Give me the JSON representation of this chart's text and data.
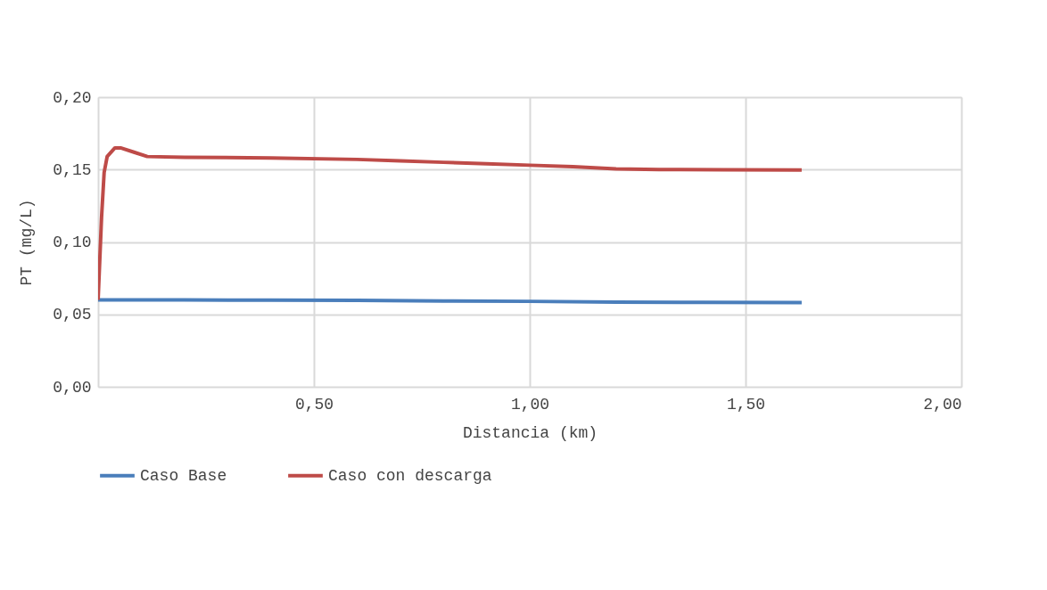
{
  "chart_data": {
    "type": "line",
    "xlabel": "Distancia (km)",
    "ylabel": "PT (mg/L)",
    "xlim": [
      0,
      2
    ],
    "ylim": [
      0,
      0.2
    ],
    "xticks": [
      {
        "value": 0,
        "label": null
      },
      {
        "value": 0.5,
        "label": "0,50"
      },
      {
        "value": 1,
        "label": "1,00"
      },
      {
        "value": 1.5,
        "label": "1,50"
      },
      {
        "value": 2,
        "label": "2,00"
      }
    ],
    "yticks": [
      {
        "value": 0,
        "label": "0,00"
      },
      {
        "value": 0.05,
        "label": "0,05"
      },
      {
        "value": 0.1,
        "label": "0,10"
      },
      {
        "value": 0.15,
        "label": "0,15"
      },
      {
        "value": 0.2,
        "label": "0,20"
      }
    ],
    "grid": true,
    "legend": "bottom",
    "marker": "none",
    "line_style": "solid",
    "series": [
      {
        "name": "Caso Base",
        "color": "#4a7ebb",
        "x": [
          0,
          0.2,
          0.4,
          0.6,
          0.8,
          1.0,
          1.2,
          1.4,
          1.63
        ],
        "values": [
          0.06,
          0.06,
          0.0598,
          0.0597,
          0.0593,
          0.059,
          0.0585,
          0.0583,
          0.0582
        ]
      },
      {
        "name": "Caso con descarga",
        "color": "#be4b48",
        "x": [
          0,
          0.008,
          0.014,
          0.021,
          0.039,
          0.052,
          0.083,
          0.114,
          0.2,
          0.4,
          0.6,
          0.7,
          0.8,
          0.9,
          1.0,
          1.1,
          1.2,
          1.3,
          1.45,
          1.63
        ],
        "values": [
          0.06,
          0.117,
          0.148,
          0.159,
          0.165,
          0.165,
          0.162,
          0.159,
          0.1585,
          0.158,
          0.157,
          0.156,
          0.155,
          0.154,
          0.153,
          0.152,
          0.1505,
          0.15,
          0.1498,
          0.1497
        ]
      }
    ]
  }
}
